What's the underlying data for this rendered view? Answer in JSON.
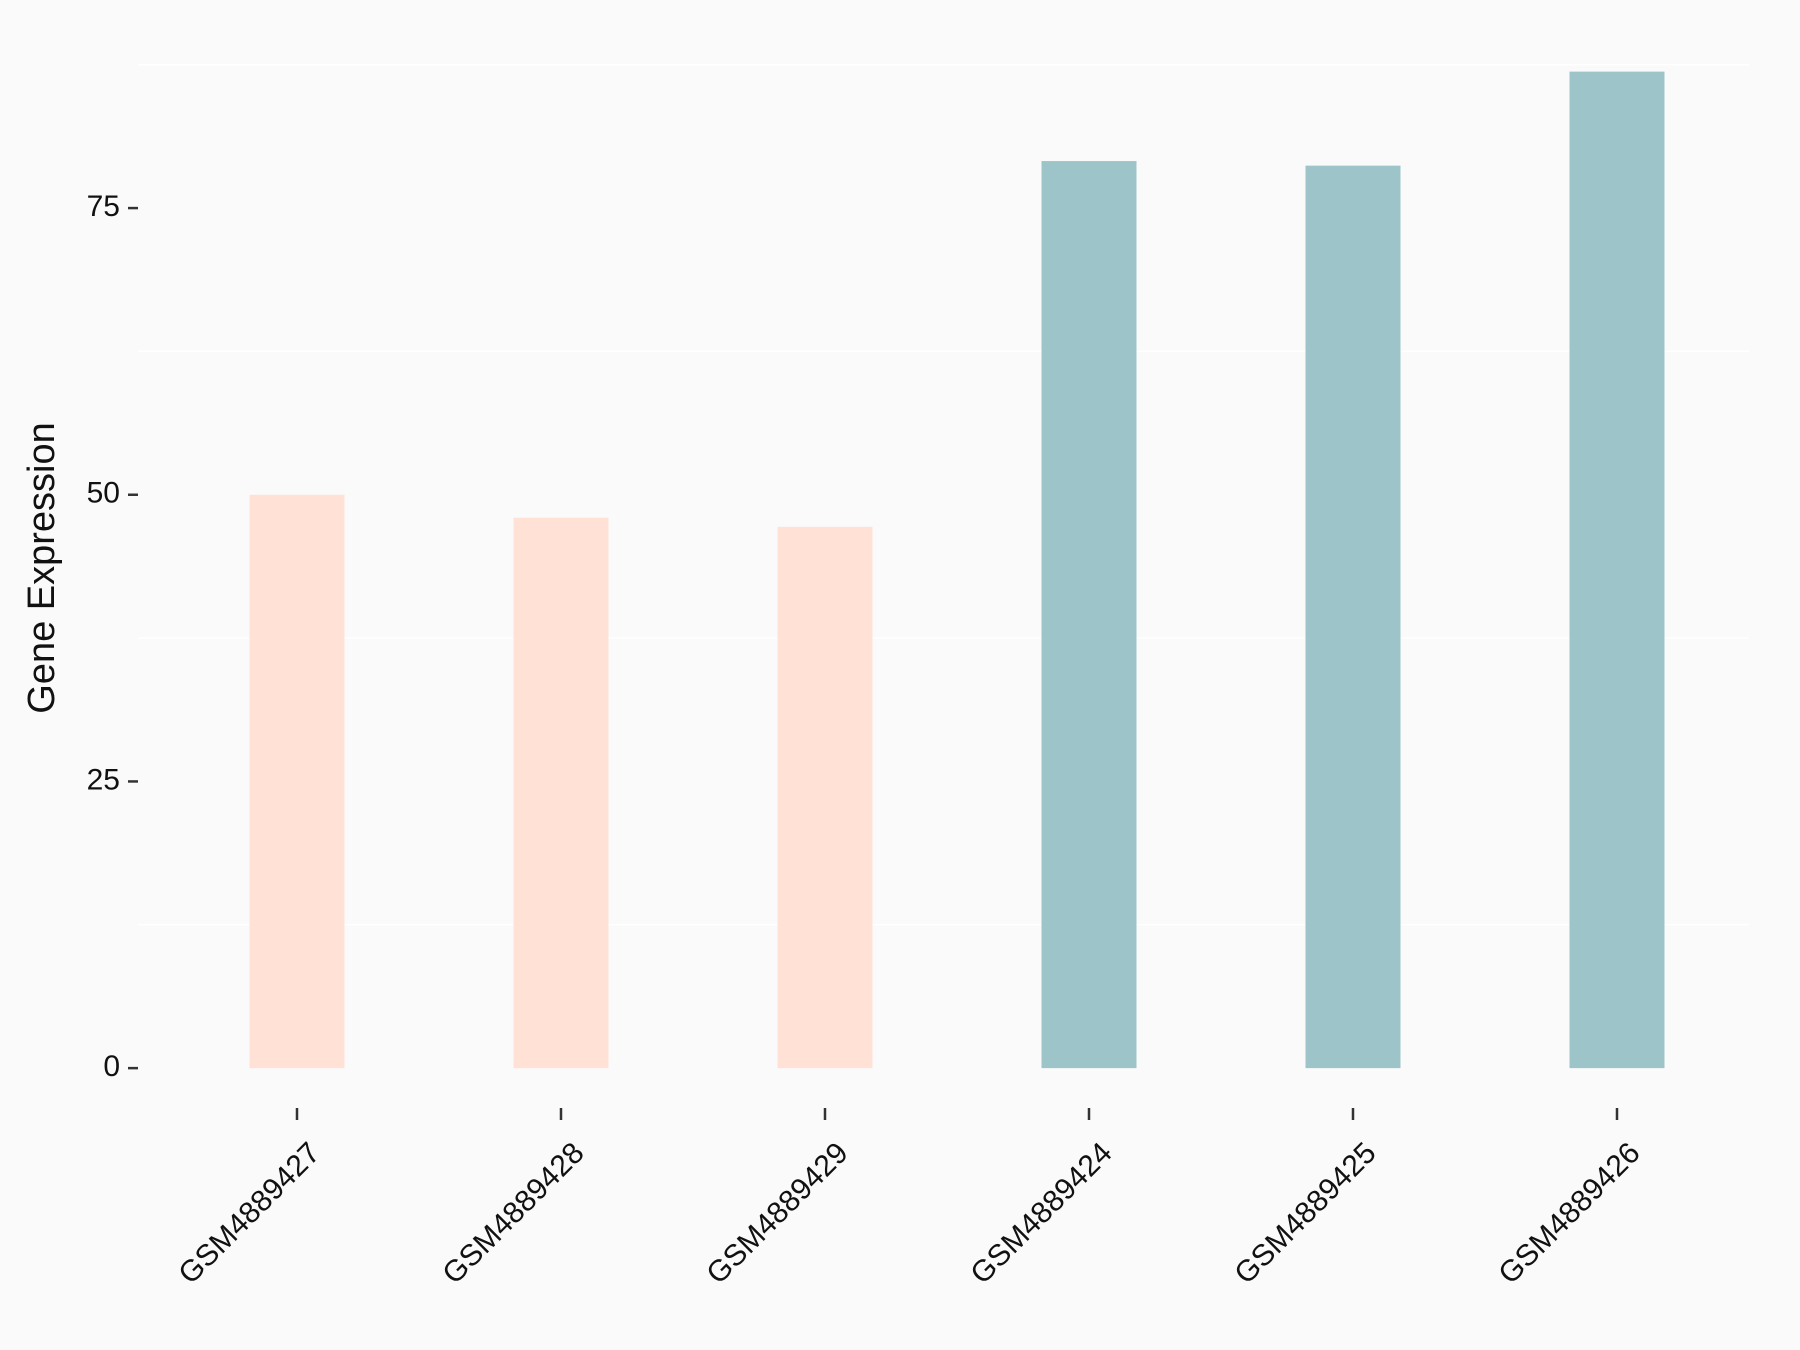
{
  "chart_data": {
    "type": "bar",
    "y_label": "Gene Expression",
    "categories": [
      "GSM4889427",
      "GSM4889428",
      "GSM4889429",
      "GSM4889424",
      "GSM4889425",
      "GSM4889426"
    ],
    "values": [
      50,
      48,
      47.2,
      79.1,
      78.7,
      86.9
    ],
    "colors": [
      "#ffe1d6",
      "#ffe1d6",
      "#ffe1d6",
      "#9dc4c8",
      "#9dc4c8",
      "#9dc4c8"
    ],
    "ylim": [
      -4,
      88
    ],
    "yticks": [
      0,
      25,
      50,
      75
    ],
    "minor_grid": [
      12.5,
      37.5,
      62.5,
      87.5
    ]
  }
}
